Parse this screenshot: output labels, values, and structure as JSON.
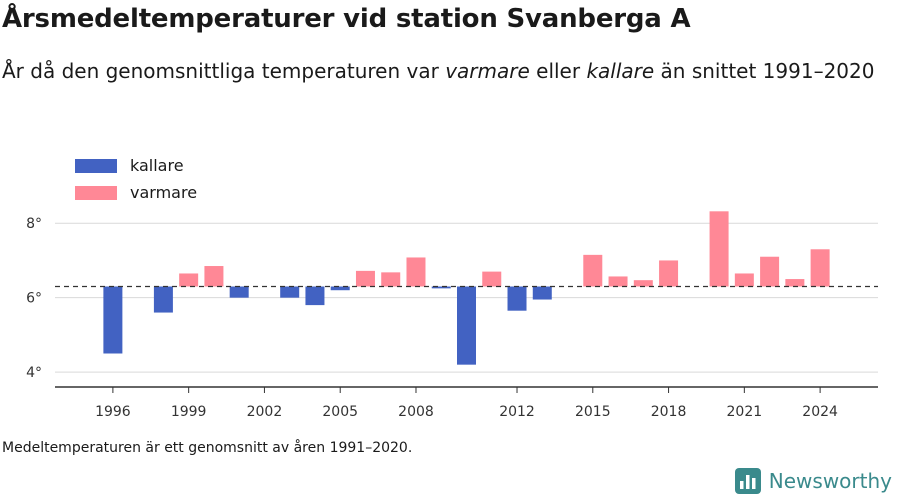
{
  "title": "Årsmedeltemperaturer vid station Svanberga A",
  "subtitle": {
    "prefix": "År då den genomsnittliga temperaturen var ",
    "warm_word": "varmare",
    "middle": " eller ",
    "cold_word": "kallare",
    "suffix": " än snittet 1991–2020"
  },
  "legend": {
    "cold_label": "kallare",
    "warm_label": "varmare"
  },
  "footnote": "Medeltemperaturen är ett genomsnitt av åren 1991–2020.",
  "brand": {
    "name": "Newsworthy",
    "icon": "newsworthy-logo-icon"
  },
  "colors": {
    "cold": "#4262c2",
    "warm": "#ff8896",
    "grid": "#d9d9d9",
    "axis": "#333333",
    "baseline": "#333333",
    "brand": "#3a8a8c"
  },
  "chart_data": {
    "type": "bar",
    "baseline": 6.3,
    "ylim": [
      3.6,
      9.0
    ],
    "yticks": [
      4,
      6,
      8
    ],
    "ytick_labels": [
      "4°",
      "6°",
      "8°"
    ],
    "xlim": [
      1994.5,
      2025.5
    ],
    "xticks": [
      1996,
      1999,
      2002,
      2005,
      2008,
      2012,
      2015,
      2018,
      2021,
      2024
    ],
    "xtick_labels": [
      "1996",
      "1999",
      "2002",
      "2005",
      "2008",
      "2012",
      "2015",
      "2018",
      "2021",
      "2024"
    ],
    "grid": true,
    "legend_position": "top-left",
    "series": [
      {
        "name": "kallare",
        "x": [
          1996,
          1998,
          2001,
          2003,
          2004,
          2005,
          2009,
          2010,
          2012,
          2013
        ],
        "values": [
          4.5,
          5.6,
          6.0,
          6.0,
          5.8,
          6.2,
          6.25,
          4.2,
          5.65,
          5.95
        ]
      },
      {
        "name": "varmare",
        "x": [
          1999,
          2000,
          2006,
          2007,
          2008,
          2011,
          2015,
          2016,
          2017,
          2018,
          2020,
          2021,
          2022,
          2023,
          2024
        ],
        "values": [
          6.65,
          6.85,
          6.72,
          6.68,
          7.08,
          6.7,
          7.15,
          6.57,
          6.47,
          7.0,
          8.32,
          6.65,
          7.1,
          6.5,
          7.3
        ]
      }
    ]
  }
}
